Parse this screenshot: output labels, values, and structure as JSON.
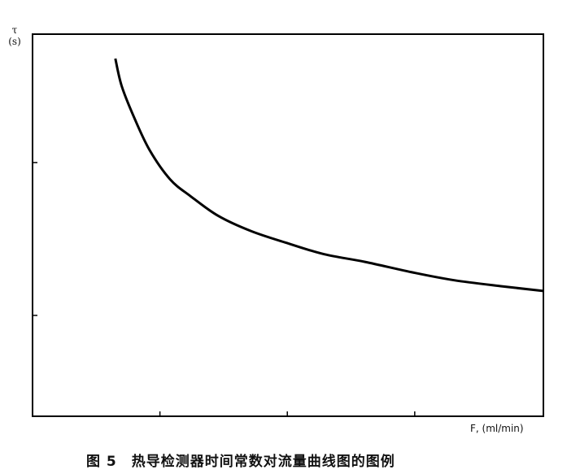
{
  "chart_data": {
    "type": "line",
    "title": "",
    "caption": "图 5　热导检测器时间常数对流量曲线图的图例",
    "xlabel": "F, (ml/min)",
    "ylabel_symbol": "τ",
    "ylabel_unit": "(s)",
    "xlim": [
      0,
      4.01
    ],
    "ylim": [
      0,
      2.5
    ],
    "xticks": [
      1,
      2,
      3
    ],
    "yticks": [
      0.66,
      1.66
    ],
    "tick_labels_shown": false,
    "grid": false,
    "series": [
      {
        "x": [
          0.65,
          0.7,
          0.8,
          0.92,
          1.08,
          1.24,
          1.46,
          1.72,
          2.01,
          2.29,
          2.61,
          2.99,
          3.31,
          3.69,
          4.01
        ],
        "y": [
          2.34,
          2.16,
          1.95,
          1.74,
          1.55,
          1.44,
          1.31,
          1.21,
          1.13,
          1.06,
          1.01,
          0.94,
          0.89,
          0.85,
          0.82
        ]
      }
    ],
    "line_color": "#000000"
  }
}
